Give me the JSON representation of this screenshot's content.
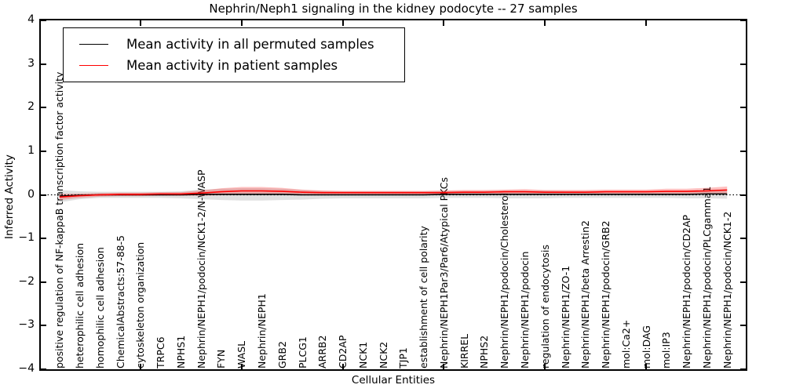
{
  "title": "Nephrin/Neph1 signaling in the kidney podocyte -- 27 samples",
  "legend": {
    "entries": [
      {
        "label": "Mean activity in all permuted samples",
        "color": "#000000"
      },
      {
        "label": "Mean activity in patient samples",
        "color": "#ff0000"
      }
    ]
  },
  "chart_data": {
    "type": "line",
    "title": "Nephrin/Neph1 signaling in the kidney podocyte -- 27 samples",
    "xlabel": "Cellular Entities",
    "ylabel": "Inferred Activity",
    "ylim": [
      -4,
      4
    ],
    "yticks": [
      4,
      3,
      2,
      1,
      0,
      -1,
      -2,
      -3,
      -4
    ],
    "x_major_ticks": [
      5,
      10,
      15,
      20,
      25,
      30
    ],
    "grid": false,
    "legend_position": "upper left",
    "zero_line": {
      "y": 0,
      "style": "dotted",
      "color": "#000000"
    },
    "categories": [
      "positive regulation of NF-kappaB transcription factor activity",
      "heterophilic cell adhesion",
      "homophilic cell adhesion",
      "ChemicalAbstracts:57-88-5",
      "cytoskeleton organization",
      "TRPC6",
      "NPHS1",
      "Nephrin/NEPH1/podocin/NCK1-2/N-WASP",
      "FYN",
      "WASL",
      "Nephrin/NEPH1",
      "GRB2",
      "PLCG1",
      "ARRB2",
      "CD2AP",
      "NCK1",
      "NCK2",
      "TJP1",
      "establishment of cell polarity",
      "Nephrin/NEPH1Par3/Par6/Atypical PKCs",
      "KIRREL",
      "NPHS2",
      "Nephrin/NEPH1/podocin/Cholesterol",
      "Nephrin/NEPH1/podocin",
      "regulation of endocytosis",
      "Nephrin/NEPH1/ZO-1",
      "Nephrin/NEPH1/beta Arrestin2",
      "Nephrin/NEPH1/podocin/GRB2",
      "mol:Ca2+",
      "mol:DAG",
      "mol:IP3",
      "Nephrin/NEPH1/podocin/CD2AP",
      "Nephrin/NEPH1/podocin/PLCgamma1",
      "Nephrin/NEPH1/podocin/NCK1-2"
    ],
    "series": [
      {
        "name": "Mean activity in all permuted samples",
        "color": "#000000",
        "values": [
          -0.03,
          -0.01,
          0,
          0,
          0,
          0,
          0,
          0.01,
          0.01,
          0.01,
          0.01,
          0.01,
          0,
          0,
          0,
          0,
          0,
          0,
          0,
          0.01,
          0.01,
          0.01,
          0.01,
          0.01,
          0.01,
          0.01,
          0.01,
          0.01,
          0.01,
          0.01,
          0.01,
          0.01,
          0.02,
          0.02
        ],
        "band_halfwidth": [
          0.14,
          0.09,
          0.07,
          0.07,
          0.07,
          0.07,
          0.08,
          0.11,
          0.13,
          0.14,
          0.14,
          0.13,
          0.11,
          0.09,
          0.08,
          0.08,
          0.08,
          0.08,
          0.08,
          0.08,
          0.08,
          0.08,
          0.09,
          0.09,
          0.09,
          0.08,
          0.08,
          0.08,
          0.08,
          0.08,
          0.08,
          0.09,
          0.1,
          0.11
        ],
        "band_color": "#999999",
        "band_opacity": 0.3
      },
      {
        "name": "Mean activity in patient samples",
        "color": "#ff0000",
        "values": [
          -0.05,
          -0.02,
          0,
          0.01,
          0.01,
          0.02,
          0.02,
          0.04,
          0.07,
          0.09,
          0.09,
          0.08,
          0.06,
          0.05,
          0.05,
          0.05,
          0.05,
          0.05,
          0.05,
          0.05,
          0.06,
          0.06,
          0.07,
          0.07,
          0.06,
          0.06,
          0.06,
          0.07,
          0.07,
          0.07,
          0.08,
          0.08,
          0.09,
          0.11
        ],
        "band_halfwidth": [
          0.07,
          0.05,
          0.04,
          0.04,
          0.04,
          0.04,
          0.04,
          0.06,
          0.08,
          0.09,
          0.09,
          0.08,
          0.06,
          0.05,
          0.04,
          0.04,
          0.04,
          0.04,
          0.04,
          0.05,
          0.05,
          0.05,
          0.05,
          0.06,
          0.05,
          0.05,
          0.05,
          0.05,
          0.05,
          0.05,
          0.06,
          0.06,
          0.07,
          0.08
        ],
        "band_color": "#ff0000",
        "band_opacity": 0.25
      }
    ]
  }
}
